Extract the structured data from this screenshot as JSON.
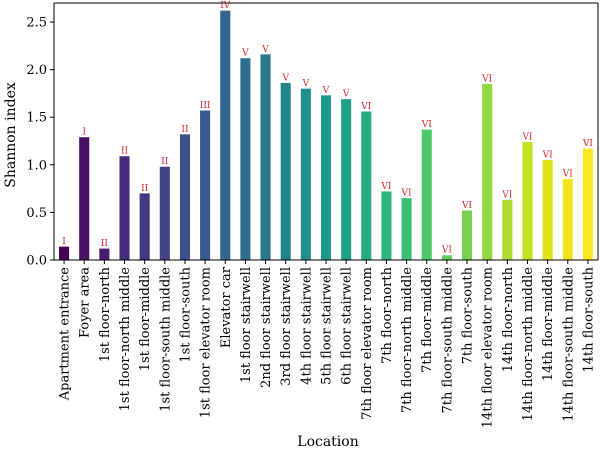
{
  "chart_data": {
    "type": "bar",
    "title": "",
    "xlabel": "Location",
    "ylabel": "Shannon index",
    "ylim": [
      0,
      2.7
    ],
    "yticks": [
      0.0,
      0.5,
      1.0,
      1.5,
      2.0,
      2.5
    ],
    "ytick_labels": [
      "0.0",
      "0.5",
      "1.0",
      "1.5",
      "2.0",
      "2.5"
    ],
    "grid": false,
    "categories": [
      "Apartment entrance",
      "Foyer area",
      "1st floor-north",
      "1st floor-north middle",
      "1st floor-middle",
      "1st floor-south middle",
      "1st floor-south",
      "1st floor elevator room",
      "Elevator car",
      "1st floor stairwell",
      "2nd floor stairwell",
      "3rd floor stairwell",
      "4th floor stairwell",
      "5th floor stairwell",
      "6th floor stairwell",
      "7th floor elevator room",
      "7th floor-north",
      "7th floor-north middle",
      "7th floor-middle",
      "7th floor-south middle",
      "7th floor-south",
      "14th floor elevator room",
      "14th floor-north",
      "14th floor-north middle",
      "14th floor-middle",
      "14th floor-south middle",
      "14th floor-south"
    ],
    "values": [
      0.14,
      1.29,
      0.12,
      1.09,
      0.7,
      0.98,
      1.32,
      1.57,
      2.62,
      2.12,
      2.16,
      1.86,
      1.8,
      1.73,
      1.69,
      1.56,
      0.72,
      0.65,
      1.37,
      0.05,
      0.52,
      1.85,
      0.63,
      1.24,
      1.05,
      0.85,
      1.17
    ],
    "bar_labels": [
      "I",
      "I",
      "II",
      "II",
      "II",
      "II",
      "II",
      "III",
      "IV",
      "V",
      "V",
      "V",
      "V",
      "V",
      "V",
      "VI",
      "VI",
      "VI",
      "VI",
      "VI",
      "VI",
      "VI",
      "VI",
      "VI",
      "VI",
      "VI",
      "VI"
    ],
    "bar_label_color": "#d62728",
    "colors": [
      "#440154",
      "#471063",
      "#481d6f",
      "#472a7a",
      "#453781",
      "#414487",
      "#3c4f8a",
      "#37598c",
      "#32648e",
      "#2d6e8e",
      "#29788e",
      "#25838e",
      "#228d8d",
      "#1f978b",
      "#1fa187",
      "#23ab82",
      "#2cb57c",
      "#3bbf73",
      "#4cc76a",
      "#62cf5d",
      "#7ad151",
      "#92d843",
      "#acdc30",
      "#c5e021",
      "#dde318",
      "#f0e51d",
      "#fde725"
    ]
  }
}
